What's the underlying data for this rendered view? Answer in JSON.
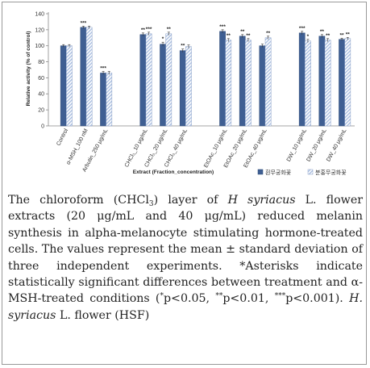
{
  "chart_data": {
    "type": "bar",
    "ylabel": "Relative activity (% of control)",
    "xlabel": "Extract (Fraction_concentration)",
    "ylim": [
      0,
      140
    ],
    "yticks": [
      0,
      20,
      40,
      60,
      80,
      100,
      120,
      140
    ],
    "grid": false,
    "legend_position": "bottom-right",
    "categories": [
      "Control",
      "α-MSH_100 nM",
      "Arbutin_250 μg/mL",
      "CHCl₃_10 μg/mL",
      "CHCl₃_20 μg/mL",
      "CHCl₃_40 μg/mL",
      "EtOAc_10 μg/mL",
      "EtOAc_20 μg/mL",
      "EtOAc_40 μg/mL",
      "DW_10 μg/mL",
      "DW_20 μg/mL",
      "DW_40 μg/mL"
    ],
    "group_spacing": [
      0,
      1,
      2,
      4,
      5,
      6,
      8,
      9,
      10,
      12,
      13,
      14
    ],
    "series": [
      {
        "name": "흰무궁화꽃",
        "color": "#3f5f93",
        "values": [
          100,
          123,
          66,
          114,
          102,
          94,
          118,
          112,
          100,
          116,
          112,
          108
        ],
        "errors": [
          1.5,
          1.5,
          2,
          2,
          2.5,
          2,
          2,
          2,
          2,
          2,
          2,
          1.5
        ],
        "stars": [
          "",
          "***",
          "***",
          "**",
          "*",
          "**",
          "***",
          "**",
          "",
          "***",
          "**",
          "**"
        ]
      },
      {
        "name": "분홍무궁화꽃",
        "color": "#a9bee0",
        "values": [
          100,
          123,
          66,
          115,
          115,
          99,
          107,
          107,
          110,
          106,
          107,
          109
        ],
        "errors": [
          1.5,
          1.5,
          2,
          2,
          2,
          2,
          2,
          2,
          2,
          2,
          2,
          1.5
        ],
        "stars": [
          "",
          "",
          "",
          "***",
          "**",
          "",
          "**",
          "**",
          "**",
          "*",
          "**",
          "**"
        ]
      }
    ]
  },
  "caption": {
    "line1a": "The chloroform (CHCl",
    "line1sub": "3",
    "line1b": ") layer of ",
    "species": "H syriacus",
    "line1c": " L. flower extracts (20 μg/mL and 40 μg/mL) reduced melanin synthesis in alpha-melanocyte stimulating hormone-treated cells. The values represent the mean ± standard deviation of three independent experiments. ",
    "star1": "*",
    "line2": "Asterisks indicate statistically significant differences between treatment and α-MSH-treated conditions (",
    "sup1": "*",
    "p1": "p<0.05, ",
    "sup2": "**",
    "p2": "p<0.01, ",
    "sup3": "***",
    "p3": "p<0.001). ",
    "species2": "H. syriacus",
    "line3": " L. flower (HSF)"
  }
}
